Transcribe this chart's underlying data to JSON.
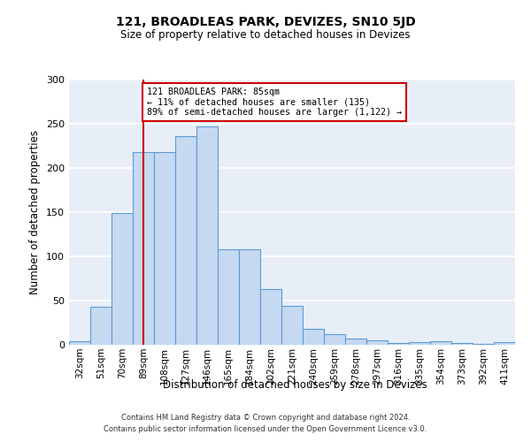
{
  "title": "121, BROADLEAS PARK, DEVIZES, SN10 5JD",
  "subtitle": "Size of property relative to detached houses in Devizes",
  "xlabel": "Distribution of detached houses by size in Devizes",
  "ylabel": "Number of detached properties",
  "bar_color": "#c5d9f1",
  "bar_edge_color": "#5b9bd5",
  "categories": [
    "32sqm",
    "51sqm",
    "70sqm",
    "89sqm",
    "108sqm",
    "127sqm",
    "146sqm",
    "165sqm",
    "184sqm",
    "202sqm",
    "221sqm",
    "240sqm",
    "259sqm",
    "278sqm",
    "297sqm",
    "316sqm",
    "335sqm",
    "354sqm",
    "373sqm",
    "392sqm",
    "411sqm"
  ],
  "values": [
    4,
    43,
    149,
    218,
    218,
    236,
    247,
    108,
    108,
    63,
    44,
    18,
    12,
    7,
    5,
    2,
    3,
    4,
    2,
    1,
    3
  ],
  "ylim": [
    0,
    300
  ],
  "yticks": [
    0,
    50,
    100,
    150,
    200,
    250,
    300
  ],
  "vline_color": "#cc0000",
  "vline_pos": 3.0,
  "annotation_text": "121 BROADLEAS PARK: 85sqm\n← 11% of detached houses are smaller (135)\n89% of semi-detached houses are larger (1,122) →",
  "annotation_box_color": "#ffffff",
  "annotation_box_edge": "#cc0000",
  "bg_color": "#e8eef8",
  "grid_color": "#ffffff",
  "footer1": "Contains HM Land Registry data © Crown copyright and database right 2024.",
  "footer2": "Contains public sector information licensed under the Open Government Licence v3.0."
}
